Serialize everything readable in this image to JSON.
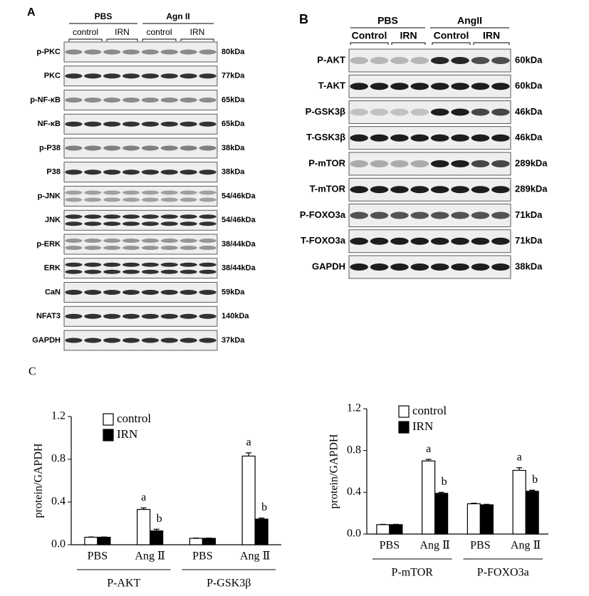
{
  "panel_a": {
    "label": "A",
    "groups": [
      "PBS",
      "Agn II"
    ],
    "subgroups": [
      "control",
      "IRN",
      "control",
      "IRN"
    ],
    "rows": [
      {
        "protein": "p-PKC",
        "size": "80kDa"
      },
      {
        "protein": "PKC",
        "size": "77kDa"
      },
      {
        "protein": "p-NF-κB",
        "size": "65kDa"
      },
      {
        "protein": "NF-κB",
        "size": "65kDa"
      },
      {
        "protein": "p-P38",
        "size": "38kDa"
      },
      {
        "protein": "P38",
        "size": "38kDa"
      },
      {
        "protein": "p-JNK",
        "size": "54/46kDa"
      },
      {
        "protein": "JNK",
        "size": "54/46kDa"
      },
      {
        "protein": "p-ERK",
        "size": "38/44kDa"
      },
      {
        "protein": "ERK",
        "size": "38/44kDa"
      },
      {
        "protein": "CaN",
        "size": "59kDa"
      },
      {
        "protein": "NFAT3",
        "size": "140kDa"
      },
      {
        "protein": "GAPDH",
        "size": "37kDa"
      }
    ]
  },
  "panel_b": {
    "label": "B",
    "groups": [
      "PBS",
      "AngII"
    ],
    "subgroups": [
      "Control",
      "IRN",
      "Control",
      "IRN"
    ],
    "rows": [
      {
        "protein": "P-AKT",
        "size": "60kDa"
      },
      {
        "protein": "T-AKT",
        "size": "60kDa"
      },
      {
        "protein": "P-GSK3β",
        "size": "46kDa"
      },
      {
        "protein": "T-GSK3β",
        "size": "46kDa"
      },
      {
        "protein": "P-mTOR",
        "size": "289kDa"
      },
      {
        "protein": "T-mTOR",
        "size": "289kDa"
      },
      {
        "protein": "P-FOXO3a",
        "size": "71kDa"
      },
      {
        "protein": "T-FOXO3a",
        "size": "71kDa"
      },
      {
        "protein": "GAPDH",
        "size": "38kDa"
      }
    ]
  },
  "panel_c": {
    "label": "C"
  },
  "chart_data": [
    {
      "type": "bar",
      "y_label": "protein/GAPDH",
      "categories": [
        "PBS",
        "Ang Ⅱ",
        "PBS",
        "Ang Ⅱ"
      ],
      "groups": [
        "P-AKT",
        "P-GSK3β"
      ],
      "ylim": [
        0,
        1.2
      ],
      "yticks": [
        {
          "value": 0,
          "label": "0.0"
        },
        0.4,
        0.8,
        1.2
      ],
      "series": [
        {
          "name": "control",
          "color": "#ffffff",
          "values": [
            0.07,
            0.33,
            0.06,
            0.83
          ],
          "errors": [
            0.003,
            0.015,
            0.003,
            0.03
          ],
          "letters": [
            null,
            "a",
            null,
            "a"
          ]
        },
        {
          "name": "IRN",
          "color": "#000000",
          "values": [
            0.07,
            0.13,
            0.06,
            0.24
          ],
          "errors": [
            0.003,
            0.015,
            0.003,
            0.01
          ],
          "letters": [
            null,
            "b",
            null,
            "b"
          ]
        }
      ]
    },
    {
      "type": "bar",
      "y_label": "protein/GAPDH",
      "categories": [
        "PBS",
        "Ang Ⅱ",
        "PBS",
        "Ang Ⅱ"
      ],
      "groups": [
        "P-mTOR",
        "P-FOXO3a"
      ],
      "ylim": [
        0,
        1.2
      ],
      "yticks": [
        {
          "value": 0,
          "label": "0.0"
        },
        0.4,
        0.8,
        1.2
      ],
      "series": [
        {
          "name": "control",
          "color": "#ffffff",
          "values": [
            0.09,
            0.7,
            0.29,
            0.61
          ],
          "errors": [
            0.003,
            0.015,
            0.005,
            0.025
          ],
          "letters": [
            null,
            "a",
            null,
            "a"
          ]
        },
        {
          "name": "IRN",
          "color": "#000000",
          "values": [
            0.09,
            0.39,
            0.28,
            0.41
          ],
          "errors": [
            0.003,
            0.01,
            0.005,
            0.01
          ],
          "letters": [
            null,
            "b",
            null,
            "b"
          ]
        }
      ]
    }
  ]
}
